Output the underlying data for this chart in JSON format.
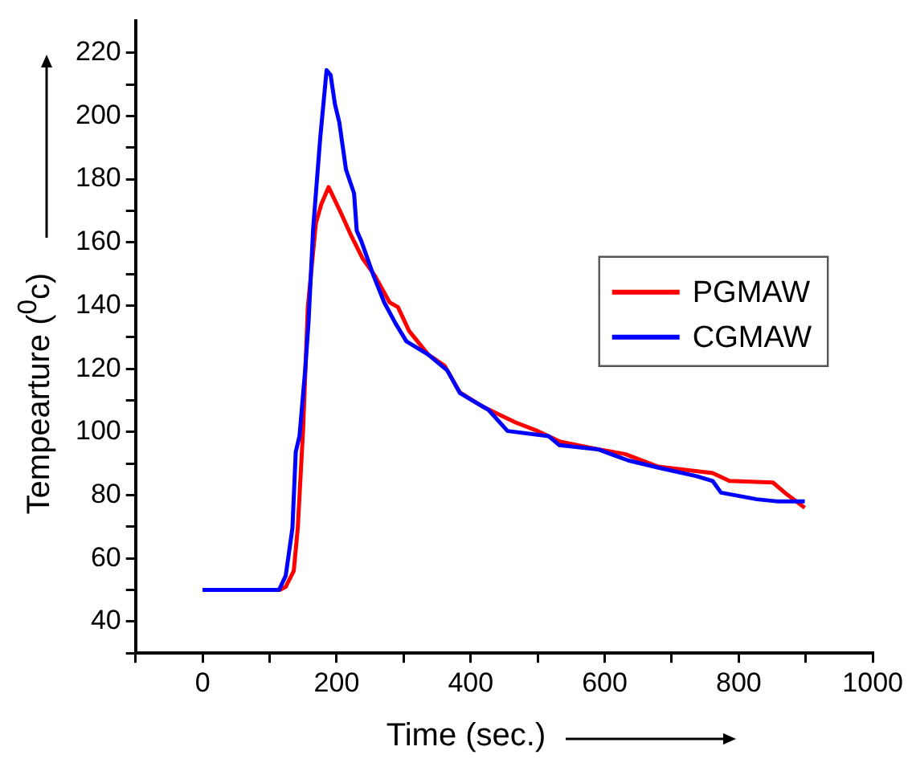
{
  "chart_data": {
    "type": "line",
    "xlabel": "Time (sec.)",
    "ylabel": "Tempearture ($^{0}$c)",
    "xlim": [
      -100,
      1000
    ],
    "xticks": [
      {
        "value": -100,
        "label": null
      },
      0,
      {
        "value": 100,
        "label": null
      },
      200,
      {
        "value": 300,
        "label": null
      },
      400,
      {
        "value": 500,
        "label": null
      },
      600,
      {
        "value": 700,
        "label": null
      },
      800,
      {
        "value": 900,
        "label": null
      },
      1000
    ],
    "ylim": [
      30,
      230
    ],
    "yticks": [
      {
        "value": 30,
        "label": null
      },
      40,
      {
        "value": 50,
        "label": null
      },
      60,
      {
        "value": 70,
        "label": null
      },
      80,
      {
        "value": 90,
        "label": null
      },
      100,
      {
        "value": 110,
        "label": null
      },
      120,
      {
        "value": 130,
        "label": null
      },
      140,
      {
        "value": 150,
        "label": null
      },
      160,
      {
        "value": 170,
        "label": null
      },
      180,
      {
        "value": 190,
        "label": null
      },
      200,
      {
        "value": 210,
        "label": null
      },
      220
    ],
    "grid": false,
    "legend": "right",
    "marker": "none",
    "line_style": "solid",
    "series": [
      {
        "name": "PGMAW",
        "color": "#ff0000",
        "x": [
          0,
          115,
          124,
          136,
          142,
          150,
          157,
          169,
          177,
          188,
          206,
          222,
          238.5,
          257,
          279,
          291.5,
          308,
          336.5,
          361,
          384,
          418,
          467,
          500,
          532.5,
          590,
          630.5,
          680,
          761,
          786,
          851,
          871.5,
          898.5
        ],
        "values": [
          50,
          50,
          51,
          56,
          69.5,
          101,
          139.5,
          166,
          172,
          177.5,
          169.5,
          162,
          155,
          149.5,
          141,
          139.5,
          132,
          124.5,
          121,
          112.5,
          108,
          103,
          100.3,
          97,
          94.5,
          93,
          89,
          87,
          84.5,
          84,
          80.3,
          76
        ]
      },
      {
        "name": "CGMAW",
        "color": "#0000ff",
        "x": [
          0,
          114,
          124,
          134,
          139,
          144.6,
          153,
          158,
          165,
          175.5,
          185,
          191,
          197.5,
          204,
          214,
          226,
          230,
          237,
          255,
          271,
          287.5,
          304,
          336.5,
          365,
          384,
          402,
          426.5,
          455,
          516,
          532.5,
          590,
          635,
          680,
          737,
          761,
          773.5,
          827,
          859,
          898.5
        ],
        "values": [
          50,
          50,
          54.5,
          69.5,
          93.7,
          98.7,
          119.5,
          134.5,
          164.5,
          193,
          214.5,
          213,
          203.7,
          198,
          183,
          175.5,
          163.7,
          160.3,
          149.5,
          141,
          134.5,
          128.7,
          124.5,
          119.5,
          112.3,
          110,
          107,
          100.3,
          98.7,
          95.8,
          94.5,
          91,
          88.7,
          86,
          84.5,
          80.8,
          78.7,
          78,
          78
        ]
      }
    ]
  }
}
